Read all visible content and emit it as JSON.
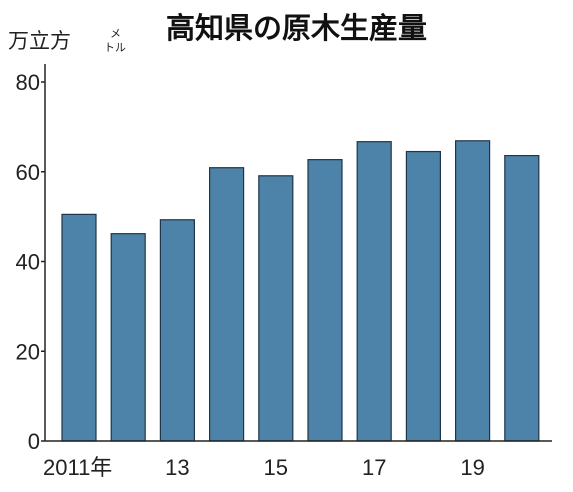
{
  "chart_data": {
    "type": "bar",
    "title": "高知県の原木生産量",
    "ylabel": "万立方",
    "ylabel_unit_top": "メ",
    "ylabel_unit_bottom": "トル",
    "categories": [
      "2011",
      "2012",
      "2013",
      "2014",
      "2015",
      "2016",
      "2017",
      "2018",
      "2019",
      "2020"
    ],
    "x_tick_labels": [
      {
        "category_index": 0,
        "label": "2011年"
      },
      {
        "category_index": 2,
        "label": "13"
      },
      {
        "category_index": 4,
        "label": "15"
      },
      {
        "category_index": 6,
        "label": "17"
      },
      {
        "category_index": 8,
        "label": "19"
      }
    ],
    "values": [
      50.5,
      46.2,
      49.3,
      60.9,
      59.1,
      62.7,
      66.7,
      64.5,
      66.9,
      63.6
    ],
    "ylim": [
      0,
      80
    ],
    "yticks": [
      "0",
      "20",
      "40",
      "60",
      "80"
    ],
    "bar_color": "#4d83a8",
    "bar_edge_color": "#1f3548",
    "grid": false,
    "legend": "none"
  }
}
